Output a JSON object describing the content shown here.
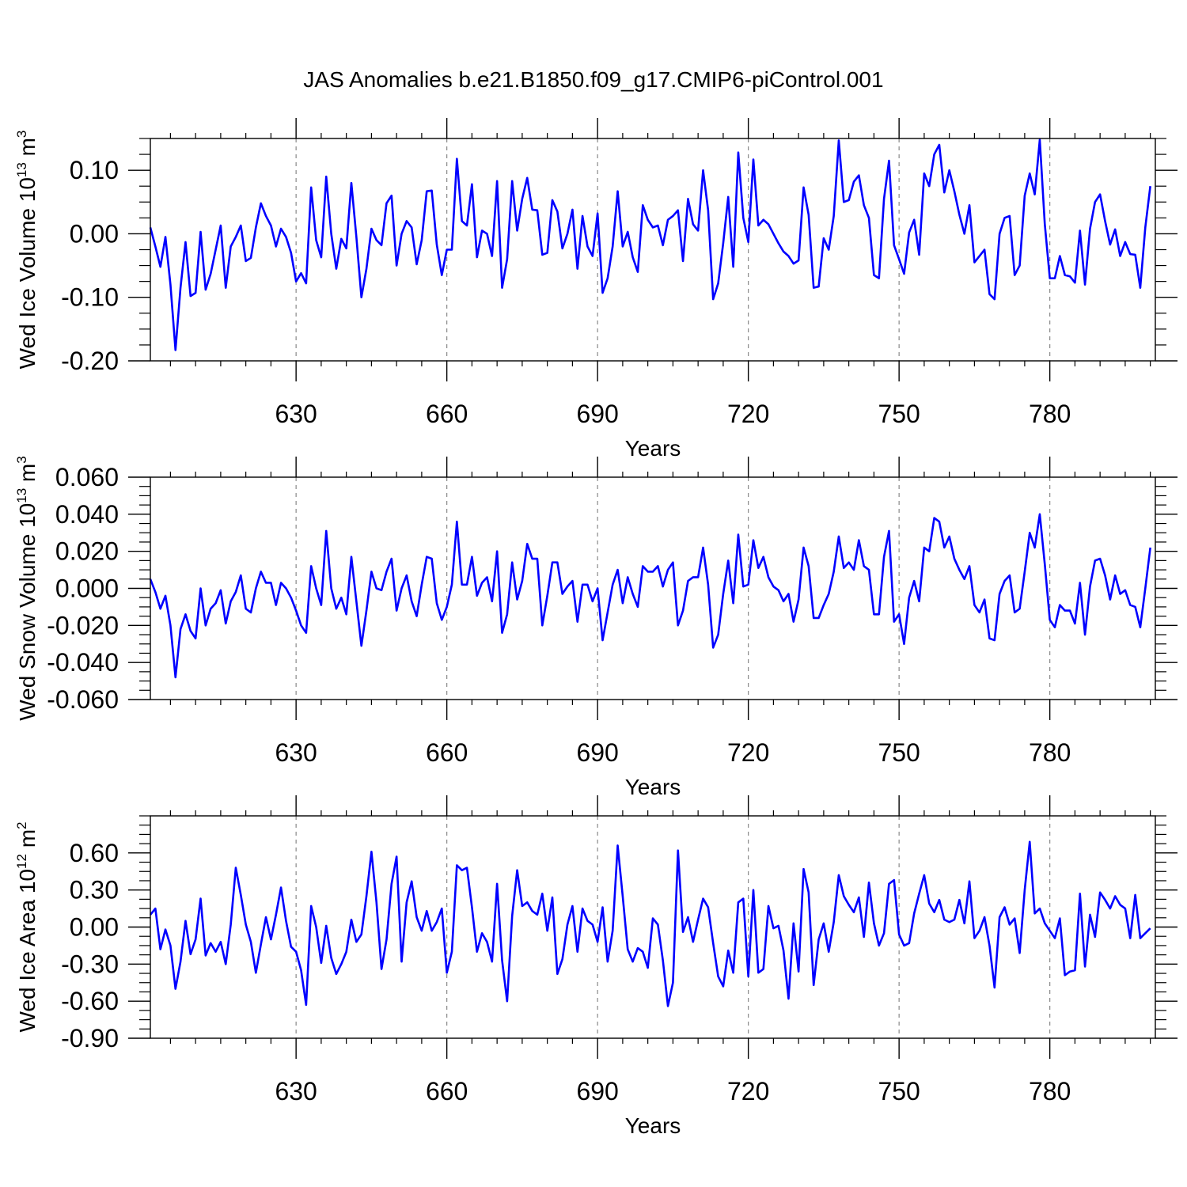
{
  "figure": {
    "title": "JAS Anomalies b.e21.B1850.f09_g17.CMIP6-piControl.001"
  },
  "chart_data": [
    {
      "type": "line",
      "xlabel": "Years",
      "ylabel": {
        "prefix": "Wed Ice Volume 10",
        "exp": "13",
        "unit": " m",
        "unit_exp": "3"
      },
      "xlim": [
        601,
        801
      ],
      "ylim": [
        -0.2,
        0.15
      ],
      "x_ticks": [
        630,
        660,
        690,
        720,
        750,
        780
      ],
      "y_ticks": [
        -0.2,
        -0.1,
        0.0,
        0.1
      ],
      "y_tick_labels": [
        "-0.20",
        "-0.10",
        "0.00",
        "0.10"
      ],
      "y_minor_step": 0.025,
      "x_minor_step": 5,
      "grid": "vertical dashed at major x ticks",
      "line_color": "#0000ff",
      "series": [
        {
          "x_start": 601,
          "values": [
            0.01,
            -0.02,
            -0.052,
            -0.005,
            -0.08,
            -0.183,
            -0.085,
            -0.013,
            -0.098,
            -0.093,
            0.003,
            -0.088,
            -0.063,
            -0.025,
            0.013,
            -0.085,
            -0.02,
            -0.005,
            0.013,
            -0.043,
            -0.038,
            0.01,
            0.048,
            0.028,
            0.013,
            -0.02,
            0.008,
            -0.005,
            -0.03,
            -0.075,
            -0.062,
            -0.078,
            0.073,
            -0.01,
            -0.037,
            0.09,
            0.0,
            -0.055,
            -0.008,
            -0.023,
            0.08,
            -0.005,
            -0.1,
            -0.055,
            0.008,
            -0.01,
            -0.018,
            0.048,
            0.06,
            -0.05,
            0.0,
            0.02,
            0.01,
            -0.048,
            -0.01,
            0.067,
            0.068,
            -0.017,
            -0.065,
            -0.025,
            -0.025,
            0.118,
            0.02,
            0.013,
            0.078,
            -0.037,
            0.005,
            0.0,
            -0.035,
            0.083,
            -0.085,
            -0.04,
            0.083,
            0.005,
            0.055,
            0.088,
            0.038,
            0.037,
            -0.033,
            -0.03,
            0.053,
            0.035,
            -0.023,
            0.0,
            0.038,
            -0.055,
            0.028,
            -0.02,
            -0.035,
            0.032,
            -0.093,
            -0.07,
            -0.02,
            0.067,
            -0.02,
            0.003,
            -0.037,
            -0.06,
            0.045,
            0.022,
            0.01,
            0.013,
            -0.018,
            0.022,
            0.028,
            0.037,
            -0.043,
            0.055,
            0.015,
            0.005,
            0.1,
            0.037,
            -0.103,
            -0.078,
            -0.015,
            0.058,
            -0.052,
            0.128,
            0.025,
            -0.013,
            0.117,
            0.013,
            0.022,
            0.015,
            0.0,
            -0.015,
            -0.028,
            -0.035,
            -0.047,
            -0.042,
            0.073,
            0.03,
            -0.085,
            -0.083,
            -0.007,
            -0.025,
            0.028,
            0.147,
            0.05,
            0.053,
            0.082,
            0.092,
            0.045,
            0.025,
            -0.065,
            -0.07,
            0.055,
            0.115,
            -0.018,
            -0.04,
            -0.063,
            0.002,
            0.022,
            -0.033,
            0.095,
            0.075,
            0.125,
            0.14,
            0.065,
            0.1,
            0.067,
            0.03,
            0.0,
            0.045,
            -0.045,
            -0.035,
            -0.025,
            -0.095,
            -0.103,
            0.0,
            0.025,
            0.028,
            -0.065,
            -0.05,
            0.06,
            0.095,
            0.062,
            0.148,
            0.015,
            -0.07,
            -0.07,
            -0.035,
            -0.065,
            -0.067,
            -0.077,
            0.005,
            -0.08,
            0.008,
            0.05,
            0.062,
            0.02,
            -0.017,
            0.007,
            -0.035,
            -0.013,
            -0.032,
            -0.033,
            -0.085,
            0.01,
            0.075
          ]
        }
      ]
    },
    {
      "type": "line",
      "xlabel": "Years",
      "ylabel": {
        "prefix": "Wed Snow Volume 10",
        "exp": "13",
        "unit": " m",
        "unit_exp": "3"
      },
      "xlim": [
        601,
        801
      ],
      "ylim": [
        -0.06,
        0.06
      ],
      "x_ticks": [
        630,
        660,
        690,
        720,
        750,
        780
      ],
      "y_ticks": [
        -0.06,
        -0.04,
        -0.02,
        0.0,
        0.02,
        0.04,
        0.06
      ],
      "y_tick_labels": [
        "-0.060",
        "-0.040",
        "-0.020",
        "0.000",
        "0.020",
        "0.040",
        "0.060"
      ],
      "y_minor_step": 0.005,
      "x_minor_step": 5,
      "grid": "vertical dashed at major x ticks",
      "line_color": "#0000ff",
      "series": [
        {
          "x_start": 601,
          "values": [
            0.005,
            -0.002,
            -0.011,
            -0.004,
            -0.02,
            -0.048,
            -0.022,
            -0.014,
            -0.023,
            -0.027,
            0.0,
            -0.02,
            -0.011,
            -0.008,
            -0.001,
            -0.019,
            -0.007,
            -0.002,
            0.007,
            -0.011,
            -0.013,
            0.0,
            0.009,
            0.003,
            0.003,
            -0.009,
            0.003,
            0.0,
            -0.005,
            -0.012,
            -0.02,
            -0.024,
            0.012,
            0.0,
            -0.009,
            0.031,
            0.0,
            -0.011,
            -0.005,
            -0.014,
            0.017,
            -0.007,
            -0.031,
            -0.012,
            0.009,
            0.0,
            -0.001,
            0.009,
            0.016,
            -0.012,
            0.0,
            0.007,
            -0.007,
            -0.015,
            0.002,
            0.017,
            0.016,
            -0.008,
            -0.017,
            -0.01,
            0.002,
            0.036,
            0.002,
            0.002,
            0.017,
            -0.004,
            0.003,
            0.006,
            -0.007,
            0.02,
            -0.024,
            -0.014,
            0.014,
            -0.006,
            0.004,
            0.024,
            0.016,
            0.016,
            -0.02,
            -0.004,
            0.014,
            0.014,
            -0.003,
            0.001,
            0.004,
            -0.018,
            0.002,
            0.002,
            -0.007,
            0.0,
            -0.028,
            -0.013,
            0.002,
            0.01,
            -0.008,
            0.006,
            -0.003,
            -0.01,
            0.012,
            0.009,
            0.009,
            0.012,
            0.001,
            0.01,
            0.014,
            -0.02,
            -0.012,
            0.004,
            0.006,
            0.006,
            0.022,
            0.002,
            -0.032,
            -0.025,
            -0.003,
            0.015,
            -0.008,
            0.029,
            0.001,
            0.002,
            0.026,
            0.011,
            0.017,
            0.006,
            0.001,
            -0.001,
            -0.007,
            -0.003,
            -0.018,
            -0.006,
            0.022,
            0.012,
            -0.016,
            -0.016,
            -0.009,
            -0.003,
            0.009,
            0.028,
            0.011,
            0.014,
            0.01,
            0.026,
            0.012,
            0.01,
            -0.014,
            -0.014,
            0.017,
            0.031,
            -0.018,
            -0.014,
            -0.03,
            -0.005,
            0.004,
            -0.007,
            0.022,
            0.02,
            0.038,
            0.036,
            0.022,
            0.028,
            0.016,
            0.01,
            0.005,
            0.012,
            -0.009,
            -0.013,
            -0.006,
            -0.027,
            -0.028,
            -0.003,
            0.004,
            0.007,
            -0.013,
            -0.011,
            0.009,
            0.03,
            0.022,
            0.04,
            0.013,
            -0.017,
            -0.021,
            -0.009,
            -0.012,
            -0.012,
            -0.019,
            0.003,
            -0.025,
            0.001,
            0.015,
            0.016,
            0.007,
            -0.006,
            0.007,
            -0.003,
            -0.001,
            -0.009,
            -0.01,
            -0.021,
            0.0,
            0.022
          ]
        }
      ]
    },
    {
      "type": "line",
      "xlabel": "Years",
      "ylabel": {
        "prefix": "Wed Ice Area 10",
        "exp": "12",
        "unit": " m",
        "unit_exp": "2"
      },
      "xlim": [
        601,
        801
      ],
      "ylim": [
        -0.9,
        0.9
      ],
      "x_ticks": [
        630,
        660,
        690,
        720,
        750,
        780
      ],
      "y_ticks": [
        -0.9,
        -0.6,
        -0.3,
        0.0,
        0.3,
        0.6
      ],
      "y_tick_labels": [
        "-0.90",
        "-0.60",
        "-0.30",
        "0.00",
        "0.30",
        "0.60"
      ],
      "y_minor_step": 0.075,
      "x_minor_step": 5,
      "grid": "vertical dashed at major x ticks",
      "line_color": "#0000ff",
      "series": [
        {
          "x_start": 601,
          "values": [
            0.1,
            0.15,
            -0.18,
            -0.02,
            -0.15,
            -0.5,
            -0.28,
            0.05,
            -0.22,
            -0.1,
            0.23,
            -0.23,
            -0.13,
            -0.2,
            -0.12,
            -0.3,
            0.02,
            0.48,
            0.26,
            0.02,
            -0.12,
            -0.37,
            -0.14,
            0.08,
            -0.1,
            0.1,
            0.32,
            0.05,
            -0.16,
            -0.2,
            -0.35,
            -0.63,
            0.17,
            0.0,
            -0.29,
            0.01,
            -0.25,
            -0.38,
            -0.3,
            -0.2,
            0.06,
            -0.12,
            -0.06,
            0.25,
            0.61,
            0.2,
            -0.34,
            -0.1,
            0.35,
            0.57,
            -0.28,
            0.2,
            0.37,
            0.08,
            -0.03,
            0.13,
            -0.03,
            0.04,
            0.15,
            -0.37,
            -0.2,
            0.5,
            0.46,
            0.48,
            0.16,
            -0.2,
            -0.05,
            -0.12,
            -0.28,
            0.35,
            -0.27,
            -0.6,
            0.09,
            0.46,
            0.17,
            0.2,
            0.13,
            0.1,
            0.27,
            -0.03,
            0.24,
            -0.38,
            -0.26,
            0.02,
            0.17,
            -0.2,
            0.15,
            0.05,
            0.02,
            -0.12,
            0.16,
            -0.28,
            -0.03,
            0.66,
            0.25,
            -0.18,
            -0.28,
            -0.17,
            -0.2,
            -0.33,
            0.07,
            0.02,
            -0.27,
            -0.64,
            -0.45,
            0.62,
            -0.04,
            0.08,
            -0.12,
            0.06,
            0.23,
            0.16,
            -0.13,
            -0.4,
            -0.48,
            -0.19,
            -0.37,
            0.2,
            0.23,
            -0.4,
            0.3,
            -0.37,
            -0.34,
            0.17,
            -0.01,
            0.01,
            -0.19,
            -0.58,
            0.03,
            -0.36,
            0.47,
            0.28,
            -0.47,
            -0.1,
            0.03,
            -0.2,
            0.04,
            0.42,
            0.25,
            0.18,
            0.12,
            0.24,
            -0.08,
            0.36,
            0.03,
            -0.15,
            -0.05,
            0.35,
            0.38,
            -0.06,
            -0.15,
            -0.13,
            0.11,
            0.27,
            0.42,
            0.19,
            0.12,
            0.22,
            0.06,
            0.04,
            0.06,
            0.22,
            0.03,
            0.37,
            -0.09,
            -0.03,
            0.08,
            -0.15,
            -0.49,
            0.08,
            0.16,
            0.02,
            0.07,
            -0.21,
            0.3,
            0.69,
            0.11,
            0.15,
            0.03,
            -0.03,
            -0.09,
            0.07,
            -0.39,
            -0.36,
            -0.35,
            0.27,
            -0.32,
            0.1,
            -0.08,
            0.28,
            0.22,
            0.15,
            0.25,
            0.18,
            0.15,
            -0.09,
            0.26,
            -0.09,
            -0.05,
            -0.01
          ]
        }
      ]
    }
  ]
}
